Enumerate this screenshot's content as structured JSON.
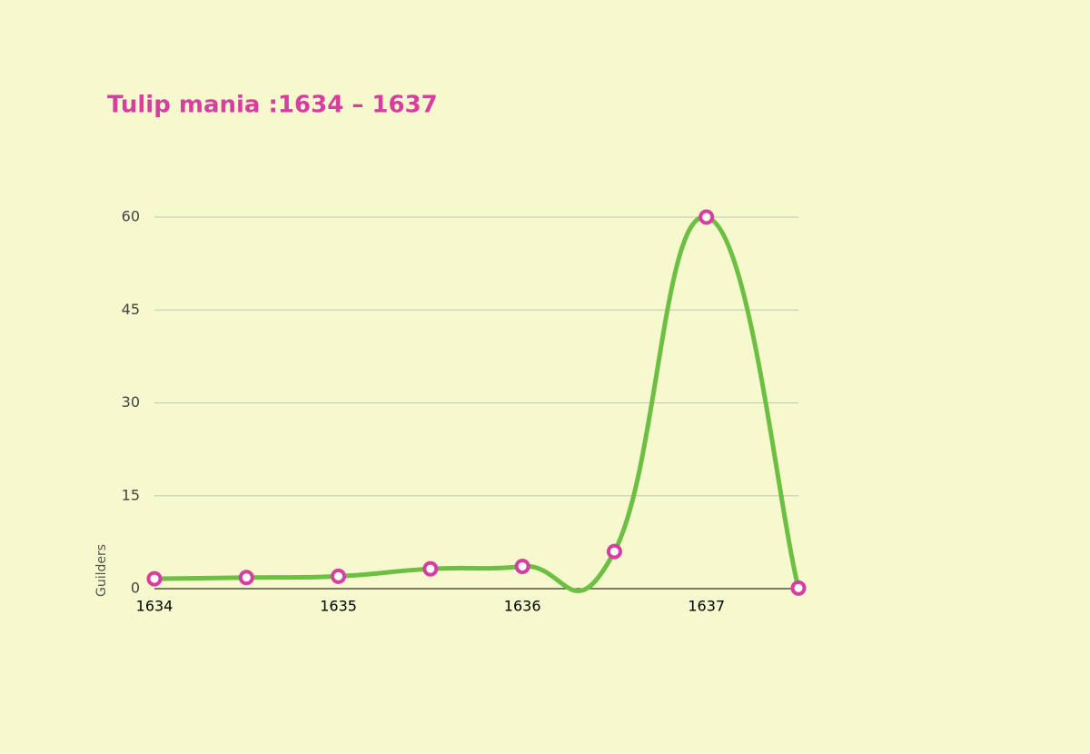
{
  "chart_data": {
    "type": "line",
    "title": "Tulip mania :1634 – 1637",
    "y_label": "Guilders",
    "x": [
      1634,
      1634.5,
      1635,
      1635.5,
      1636,
      1636.5,
      1637,
      1637.5
    ],
    "series": [
      {
        "name": "Guilders",
        "color": "#6cbf43",
        "marker_color": "#d63ea0",
        "values": [
          1.6,
          1.8,
          2.0,
          3.2,
          3.6,
          6.0,
          60,
          0.1
        ]
      }
    ],
    "xlim": [
      1634,
      1637.5
    ],
    "xticks": [
      1634,
      1635,
      1636,
      1637
    ],
    "ylim": [
      0,
      60
    ],
    "yticks": [
      0,
      15,
      30,
      45,
      60
    ],
    "grid": true
  }
}
